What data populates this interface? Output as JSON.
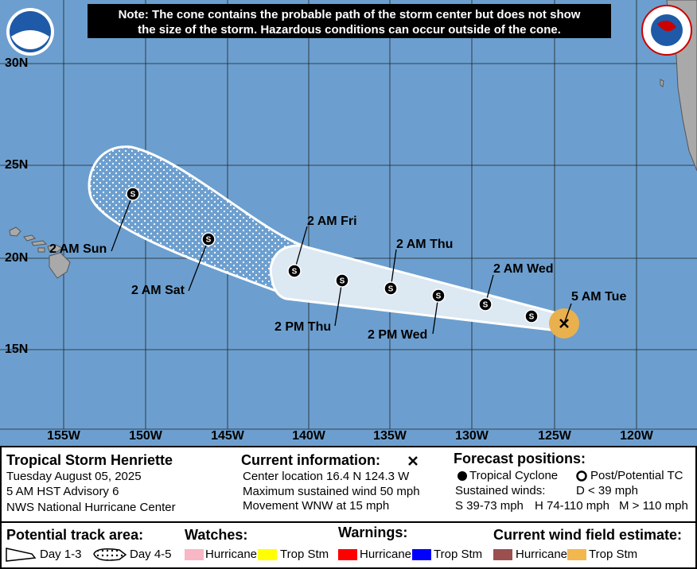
{
  "note": {
    "lines": [
      "Note: The cone contains the probable path of the storm center but does not show",
      "the size of the storm. Hazardous conditions can occur outside of the cone."
    ]
  },
  "map": {
    "lat_labels": [
      "30N",
      "25N",
      "20N",
      "15N"
    ],
    "lon_labels": [
      "155W",
      "150W",
      "145W",
      "140W",
      "135W",
      "130W",
      "125W",
      "120W"
    ],
    "time_labels": [
      "5 AM Tue",
      "2 AM Wed",
      "2 PM Wed",
      "2 AM Thu",
      "2 PM Thu",
      "2 AM Fri",
      "2 AM Sat",
      "2 AM Sun"
    ],
    "forecast_symbols": [
      "S",
      "S",
      "S",
      "S",
      "S",
      "S",
      "S",
      "S"
    ]
  },
  "storm": {
    "name": "Tropical Storm Henriette",
    "date": "Tuesday August 05, 2025",
    "advisory": "5 AM HST Advisory 6",
    "center": "NWS National Hurricane Center"
  },
  "current_info": {
    "title": "Current information:",
    "lines": [
      "Center location 16.4 N 124.3 W",
      "Maximum sustained wind 50 mph",
      "Movement WNW at 15 mph"
    ]
  },
  "forecast_positions": {
    "title": "Forecast positions:",
    "tropical_cyclone": "Tropical Cyclone",
    "post_potential": "Post/Potential TC",
    "sustained_winds": "Sustained winds:",
    "d": "D < 39 mph",
    "s": "S 39-73 mph",
    "h": "H 74-110 mph",
    "m": "M > 110 mph"
  },
  "legend": {
    "track_title": "Potential track area:",
    "day13": "Day 1-3",
    "day45": "Day 4-5",
    "watches_title": "Watches:",
    "watch_hurricane": "Hurricane",
    "watch_tropstm": "Trop Stm",
    "warnings_title": "Warnings:",
    "warn_hurricane": "Hurricane",
    "warn_tropstm": "Trop Stm",
    "wind_title": "Current wind field estimate:",
    "wind_hurricane": "Hurricane",
    "wind_tropstm": "Trop Stm"
  }
}
